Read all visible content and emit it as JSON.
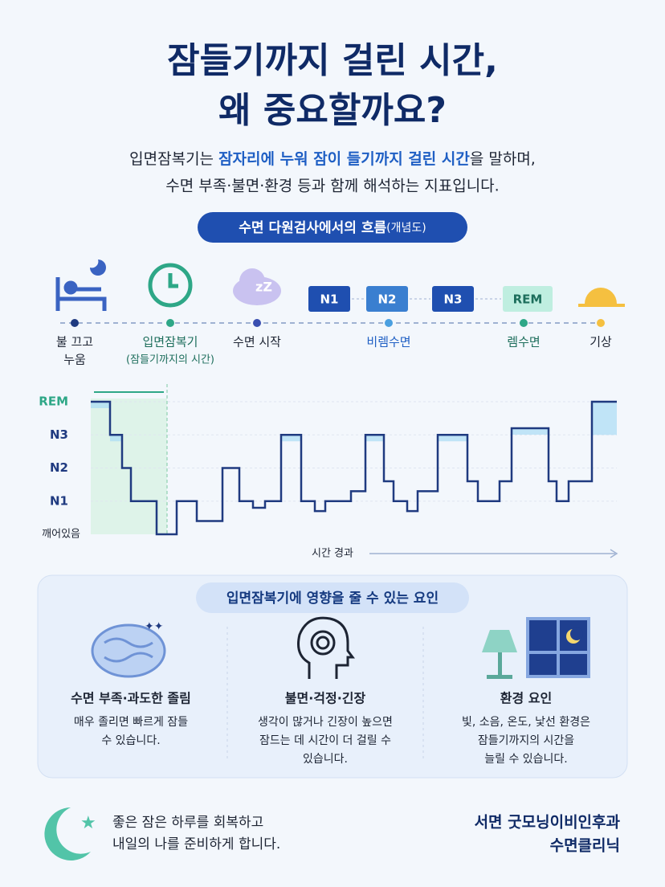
{
  "header": {
    "title_lines": [
      "잠들기까지 걸린 시간,",
      "왜 중요할까요?"
    ],
    "intro_line1": [
      "입면잠복기는 ",
      "잠자리에 누워 잠이 들기까지 걸린 시간",
      "을 말하며,"
    ],
    "intro_line2": "수면 부족·불면·환경 등과 함께 해석하는 지표입니다."
  },
  "flow": {
    "badge": [
      "수면 다원검사에서의 흐름",
      "(개념도)"
    ],
    "stages": [
      "N1",
      "N2",
      "N3",
      "REM"
    ],
    "points": [
      [
        "불 끄고",
        "누움"
      ],
      [
        "입면잠복기",
        "(잠들기까지의 시간)"
      ],
      [
        "수면 시작"
      ],
      [
        "비렘수면"
      ],
      [
        "렘수면"
      ],
      [
        "기상"
      ]
    ]
  },
  "hypnogram": {
    "y_labels": [
      "깨어있음",
      "N1",
      "N2",
      "N3",
      "REM"
    ],
    "x_label": "시간 경과",
    "time": [
      0,
      24,
      39,
      50,
      82,
      107,
      132,
      164,
      185,
      202,
      217,
      237,
      262,
      279,
      292,
      324,
      342,
      365,
      377,
      394,
      407,
      432,
      469,
      482,
      509,
      524,
      570,
      580,
      595,
      624,
      655
    ],
    "levels": [
      4,
      3,
      2,
      1,
      0,
      1,
      0.4,
      2,
      1,
      0.8,
      1,
      3,
      1,
      0.7,
      1,
      1.3,
      3,
      1.6,
      1,
      0.7,
      1.3,
      3,
      1.6,
      1,
      1.6,
      3.2,
      1.6,
      1,
      1.6,
      4
    ]
  },
  "factors": {
    "title": "입면잠복기에 영향을 줄 수 있는 요인",
    "items": [
      {
        "title": "수면 부족·과도한 졸림",
        "lines": [
          "매우 졸리면 빠르게 잠들",
          "수 있습니다."
        ]
      },
      {
        "title": "불면·걱정·긴장",
        "lines": [
          "생각이 많거나 긴장이 높으면",
          "잠드는 데 시간이 더 걸릴 수",
          "있습니다."
        ]
      },
      {
        "title": "환경 요인",
        "lines": [
          "빛, 소음, 온도, 낯선 환경은",
          "잠들기까지의 시간을",
          "늘릴 수 있습니다."
        ]
      }
    ]
  },
  "footer": {
    "message": [
      "좋은 잠은 하루를 회복하고",
      "내일의 나를 준비하게 합니다."
    ],
    "clinic": [
      "서면 굿모닝이비인후과",
      "수면클리닉"
    ]
  }
}
